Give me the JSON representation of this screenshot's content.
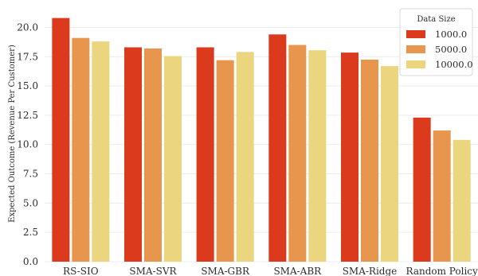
{
  "chart_data": {
    "type": "bar",
    "categories": [
      "RS-SIO",
      "SMA-SVR",
      "SMA-GBR",
      "SMA-ABR",
      "SMA-Ridge",
      "Random Policy"
    ],
    "series": [
      {
        "name": "1000.0",
        "color": "#dc3a1c",
        "values": [
          20.8,
          18.3,
          18.3,
          19.4,
          17.85,
          12.3
        ]
      },
      {
        "name": "5000.0",
        "color": "#e8954e",
        "values": [
          19.1,
          18.2,
          17.2,
          18.5,
          17.25,
          11.2
        ]
      },
      {
        "name": "10000.0",
        "color": "#ecd57f",
        "values": [
          18.8,
          17.55,
          17.9,
          18.05,
          16.7,
          10.4
        ]
      }
    ],
    "xlabel": "",
    "ylabel": "Expected Outcome (Revenue Per Customer)",
    "ylim": [
      0,
      22
    ],
    "yticks": [
      0.0,
      2.5,
      5.0,
      7.5,
      10.0,
      12.5,
      15.0,
      17.5,
      20.0
    ],
    "ytick_labels": [
      "0.0",
      "2.5",
      "5.0",
      "7.5",
      "10.0",
      "12.5",
      "15.0",
      "17.5",
      "20.0"
    ],
    "legend": {
      "title": "Data Size",
      "placement": "top-right"
    },
    "grid": "horizontal"
  }
}
